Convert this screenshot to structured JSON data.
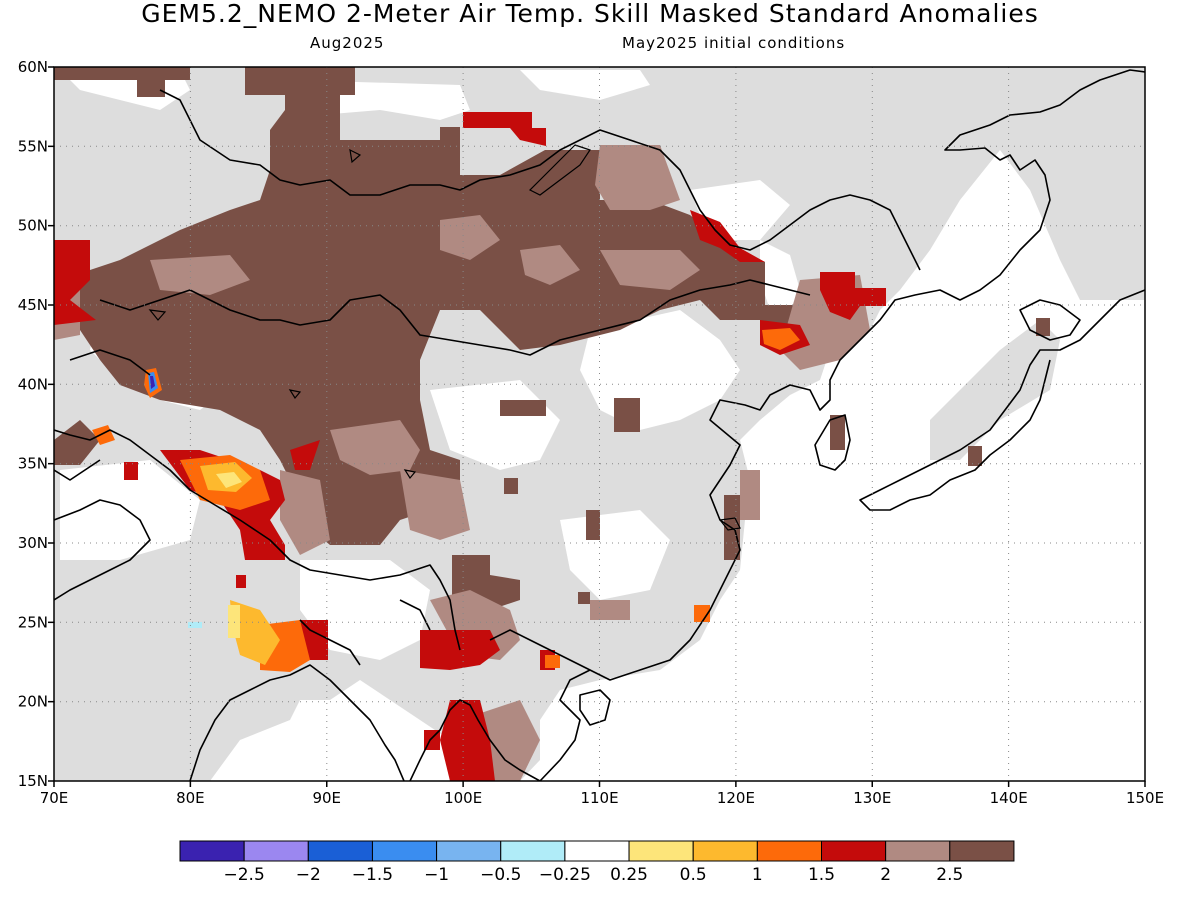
{
  "title": "GEM5.2_NEMO 2-Meter Air Temp. Skill Masked Standard Anomalies",
  "subtitle_left": "Aug2025",
  "subtitle_right": "May2025 initial conditions",
  "map": {
    "lon_range": [
      70,
      150
    ],
    "lat_range": [
      15,
      60
    ],
    "lon_ticks": [
      "70E",
      "80E",
      "90E",
      "100E",
      "110E",
      "120E",
      "130E",
      "140E",
      "150E"
    ],
    "lat_ticks": [
      "15N",
      "20N",
      "25N",
      "30N",
      "35N",
      "40N",
      "45N",
      "50N",
      "55N",
      "60N"
    ],
    "gridlines": "dotted",
    "mask_color": "#dddddd"
  },
  "colorbar": {
    "colors": [
      "#3a22b0",
      "#9b87f0",
      "#1a5fd6",
      "#3a8df0",
      "#78b4f0",
      "#b0ecf8",
      "#ffffff",
      "#fde57a",
      "#fdb92e",
      "#fd6a0a",
      "#c40b0b",
      "#b08a82",
      "#7a5046"
    ],
    "labels": [
      "-2.5",
      "-2",
      "-1.5",
      "-1",
      "-0.5",
      "-0.25",
      "0.25",
      "0.5",
      "1",
      "1.5",
      "2",
      "2.5"
    ]
  }
}
